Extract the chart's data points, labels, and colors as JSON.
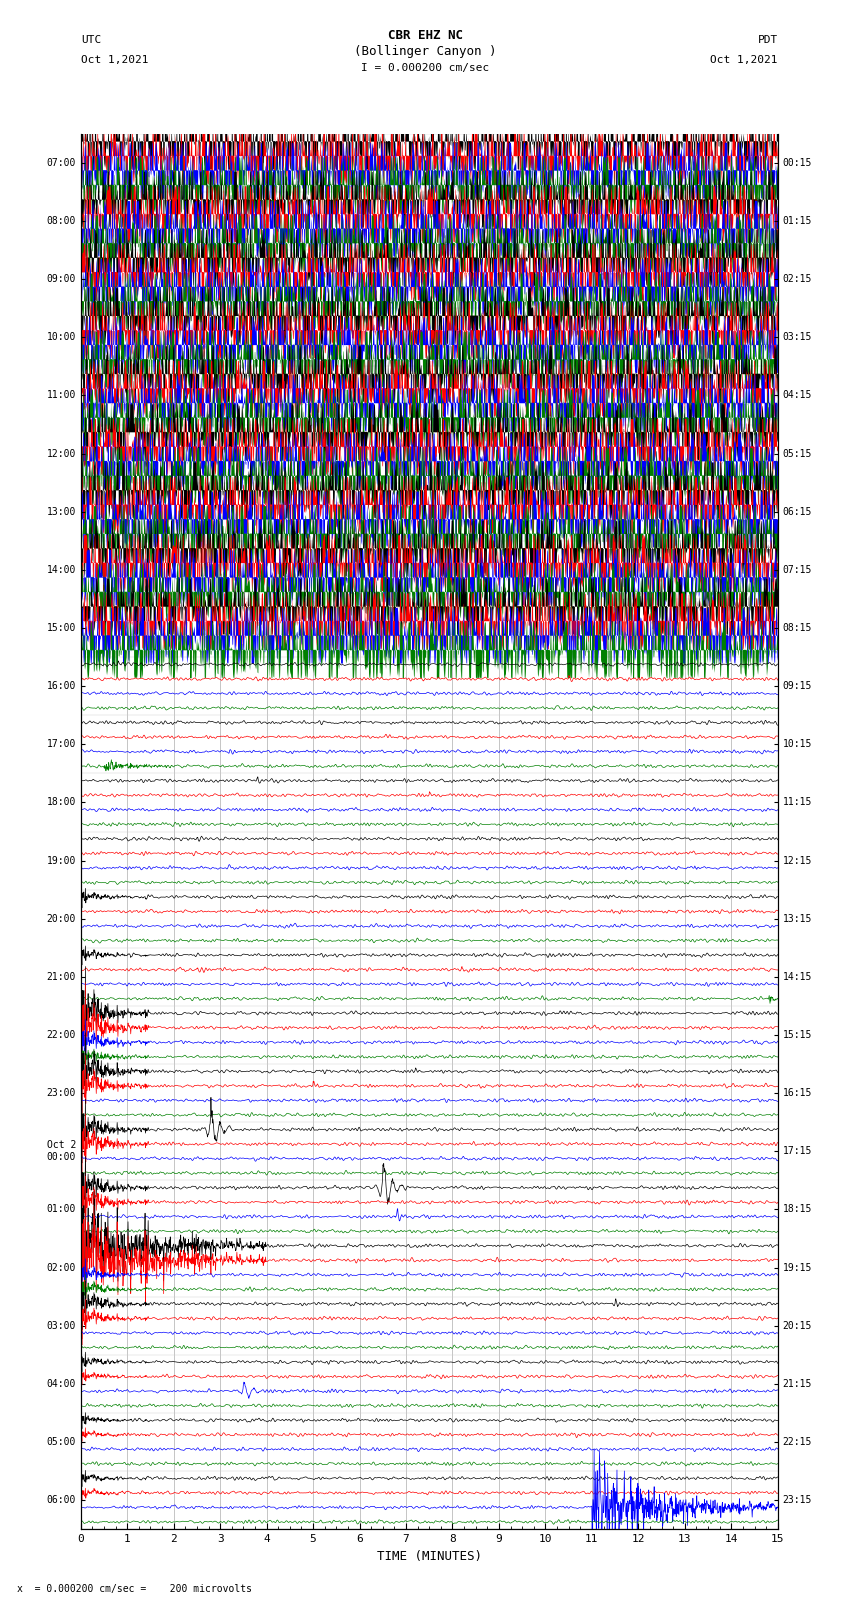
{
  "title_line1": "CBR EHZ NC",
  "title_line2": "(Bollinger Canyon )",
  "scale_text": "I = 0.000200 cm/sec",
  "bottom_scale_text": "x  = 0.000200 cm/sec =    200 microvolts",
  "left_label_line1": "UTC",
  "left_label_line2": "Oct 1,2021",
  "right_label_line1": "PDT",
  "right_label_line2": "Oct 1,2021",
  "xlabel": "TIME (MINUTES)",
  "left_times": [
    "07:00",
    "08:00",
    "09:00",
    "10:00",
    "11:00",
    "12:00",
    "13:00",
    "14:00",
    "15:00",
    "16:00",
    "17:00",
    "18:00",
    "19:00",
    "20:00",
    "21:00",
    "22:00",
    "23:00",
    "Oct 2\n00:00",
    "01:00",
    "02:00",
    "03:00",
    "04:00",
    "05:00",
    "06:00"
  ],
  "right_times": [
    "00:15",
    "01:15",
    "02:15",
    "03:15",
    "04:15",
    "05:15",
    "06:15",
    "07:15",
    "08:15",
    "09:15",
    "10:15",
    "11:15",
    "12:15",
    "13:15",
    "14:15",
    "15:15",
    "16:15",
    "17:15",
    "18:15",
    "19:15",
    "20:15",
    "21:15",
    "22:15",
    "23:15"
  ],
  "n_rows": 24,
  "background_color": "#ffffff",
  "colors": [
    "black",
    "red",
    "blue",
    "green"
  ],
  "busy_rows": 9,
  "figwidth": 8.5,
  "figheight": 16.13
}
